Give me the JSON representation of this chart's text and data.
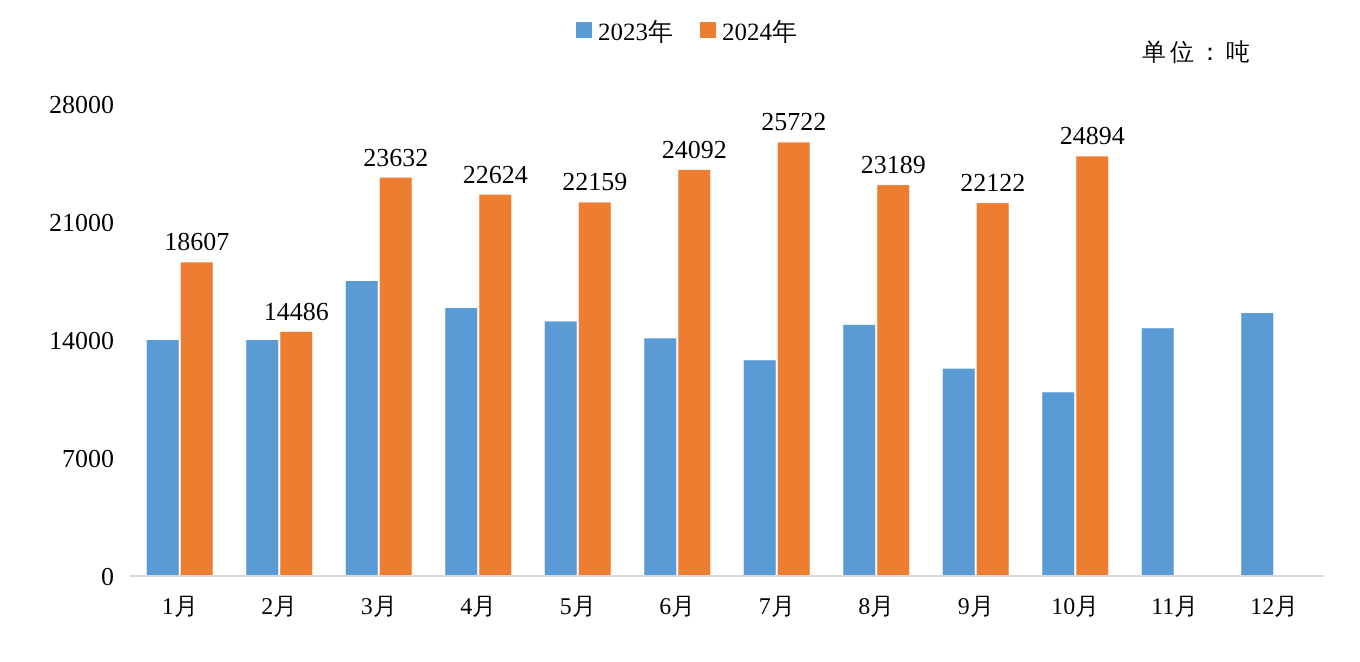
{
  "chart_data": {
    "type": "bar",
    "categories": [
      "1月",
      "2月",
      "3月",
      "4月",
      "5月",
      "6月",
      "7月",
      "8月",
      "9月",
      "10月",
      "11月",
      "12月"
    ],
    "series": [
      {
        "name": "2023年",
        "color": "#5b9bd5",
        "values": [
          14000,
          14000,
          17500,
          15900,
          15100,
          14100,
          12800,
          14900,
          12300,
          10900,
          14700,
          15600
        ]
      },
      {
        "name": "2024年",
        "color": "#ed7d31",
        "values": [
          18607,
          14486,
          23632,
          22624,
          22159,
          24092,
          25722,
          23189,
          22122,
          24894,
          null,
          null
        ],
        "value_labels": [
          "18607",
          "14486",
          "23632",
          "22624",
          "22159",
          "24092",
          "25722",
          "23189",
          "22122",
          "24894",
          null,
          null
        ]
      }
    ],
    "ylim": [
      0,
      28000
    ],
    "yticks": [
      0,
      7000,
      14000,
      21000,
      28000
    ],
    "grid": false,
    "legend": "top",
    "annotations": [
      "单位：吨"
    ]
  }
}
